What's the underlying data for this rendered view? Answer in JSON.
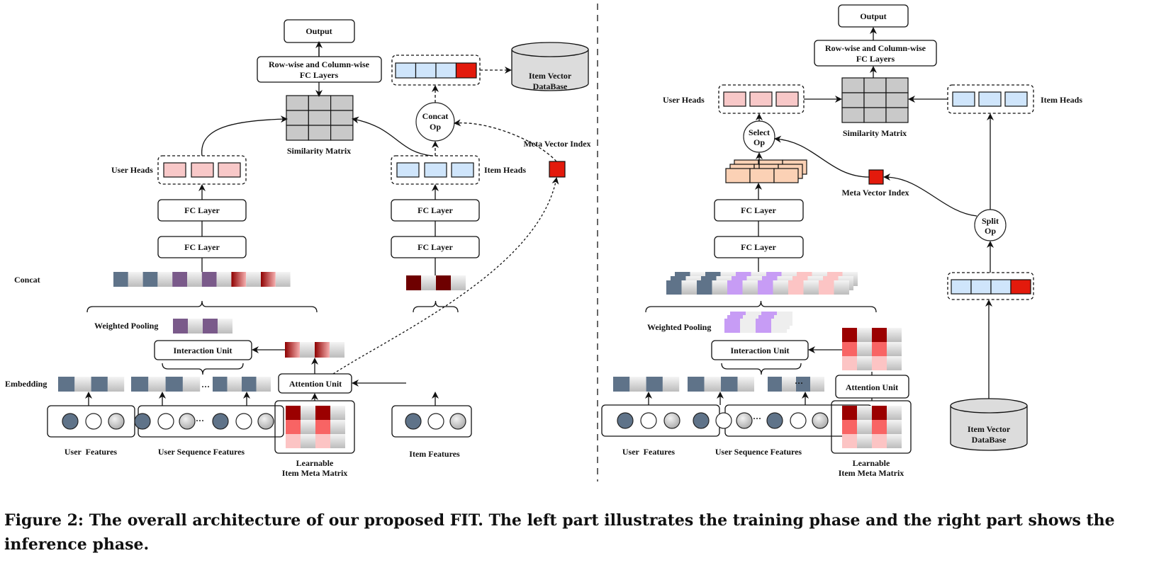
{
  "caption": {
    "line1": "Figure 2: The overall architecture of our proposed FIT. The left part illustrates the training phase and the right part shows the",
    "line2": "inference phase."
  },
  "training": {
    "output": "Output",
    "fc_layers_1": "Row-wise and Column-wise",
    "fc_layers_2": "FC Layers",
    "similarity_matrix": "Similarity Matrix",
    "user_heads": "User Heads",
    "item_heads": "Item Heads",
    "fc_layer": "FC Layer",
    "concat": "Concat",
    "weighted_pooling": "Weighted Pooling",
    "interaction_unit": "Interaction Unit",
    "attention_unit": "Attention Unit",
    "embedding": "Embedding",
    "user_features": "User  Features",
    "user_sequence_features": "User Sequence Features",
    "learnable_1": "Learnable",
    "learnable_2": "Item Meta Matrix",
    "item_features": "Item Features",
    "concat_op_1": "Concat",
    "concat_op_2": "Op",
    "db_1": "Item Vector",
    "db_2": "DataBase",
    "meta_vector_index": "Meta Vector Index",
    "ellipsis": "···"
  },
  "inference": {
    "output": "Output",
    "fc_layers_1": "Row-wise and Column-wise",
    "fc_layers_2": "FC Layers",
    "similarity_matrix": "Similarity Matrix",
    "user_heads": "User Heads",
    "item_heads": "Item Heads",
    "select_op_1": "Select",
    "select_op_2": "Op",
    "split_op_1": "Split",
    "split_op_2": "Op",
    "meta_vector_index": "Meta Vector Index",
    "fc_layer": "FC Layer",
    "weighted_pooling": "Weighted Pooling",
    "interaction_unit": "Interaction Unit",
    "attention_unit": "Attention Unit",
    "user_features": "User  Features",
    "user_sequence_features": "User Sequence Features",
    "learnable_1": "Learnable",
    "learnable_2": "Item Meta Matrix",
    "db_1": "Item Vector",
    "db_2": "DataBase",
    "ellipsis": "···"
  },
  "colors": {
    "slate": "#5f7389",
    "purple": "#7a5a8a",
    "light_purple": "#c79cf5",
    "dark_red": "#6e0000",
    "red": "#e31a0c",
    "head_pink": "#f8c8c8",
    "head_blue": "#cfe5fb",
    "matrix_gray": "#c9c9c9"
  }
}
